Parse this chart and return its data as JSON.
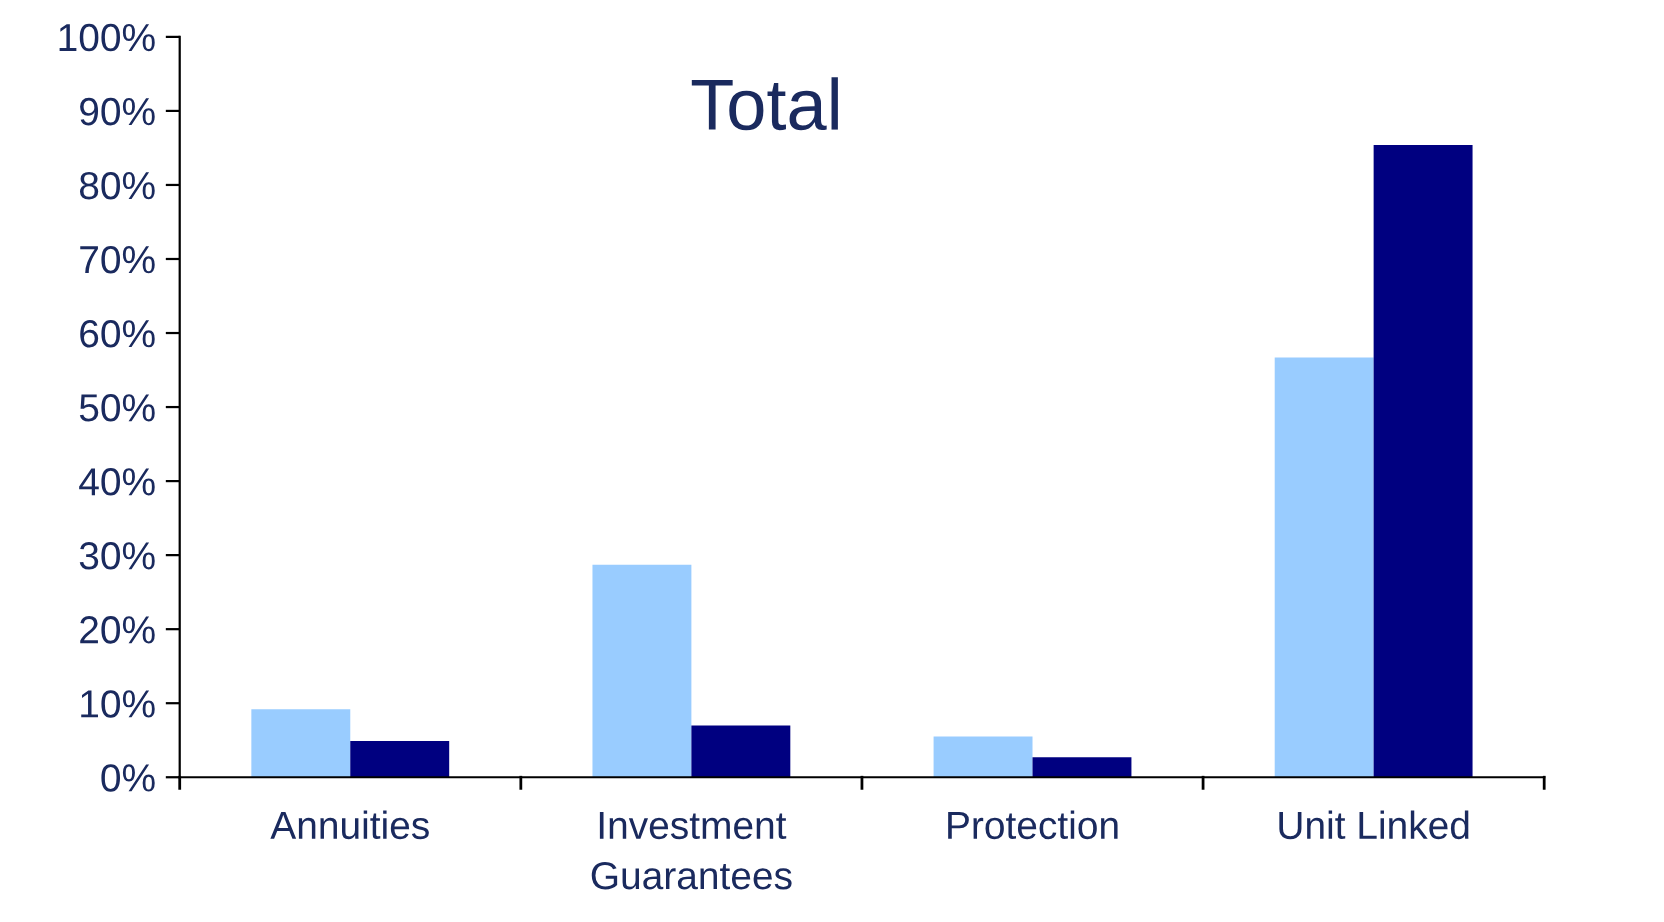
{
  "chart_data": {
    "type": "bar",
    "title": "Total",
    "categories": [
      "Annuities",
      "Investment\nGuarantees",
      "Protection",
      "Unit Linked"
    ],
    "series": [
      {
        "color": "#99ccff",
        "values": [
          9.2,
          28.7,
          5.5,
          56.7
        ]
      },
      {
        "color": "#000080",
        "values": [
          4.9,
          7.0,
          2.7,
          85.4
        ]
      }
    ],
    "ylim": [
      0,
      100
    ],
    "yticks": [
      {
        "value": 0,
        "label": "0%"
      },
      {
        "value": 10,
        "label": "10%"
      },
      {
        "value": 20,
        "label": "20%"
      },
      {
        "value": 30,
        "label": "30%"
      },
      {
        "value": 40,
        "label": "40%"
      },
      {
        "value": 50,
        "label": "50%"
      },
      {
        "value": 60,
        "label": "60%"
      },
      {
        "value": 70,
        "label": "70%"
      },
      {
        "value": 80,
        "label": "80%"
      },
      {
        "value": 90,
        "label": "90%"
      },
      {
        "value": 100,
        "label": "100%"
      }
    ],
    "grid": false,
    "legend": false
  }
}
